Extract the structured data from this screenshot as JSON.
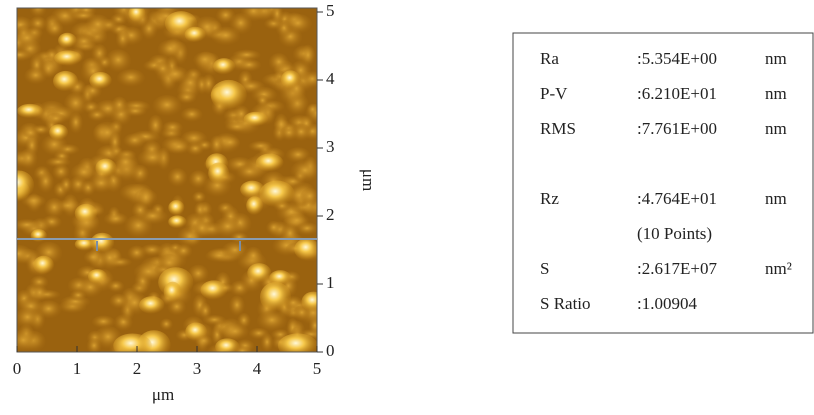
{
  "image_axes": {
    "x_label": "μm",
    "y_label": "μm",
    "xticks": [
      0,
      1,
      2,
      3,
      4,
      5
    ],
    "yticks": [
      0,
      1,
      2,
      3,
      4,
      5
    ]
  },
  "table": {
    "rows": [
      {
        "name": "Ra",
        "value": ":5.354E+00",
        "unit": "nm"
      },
      {
        "name": "P-V",
        "value": ":6.210E+01",
        "unit": "nm"
      },
      {
        "name": "RMS",
        "value": ":7.761E+00",
        "unit": "nm"
      },
      {
        "name": "Rz",
        "value": ":4.764E+01",
        "unit": "nm"
      },
      {
        "value": "(10 Points)"
      },
      {
        "name": "S",
        "value": ":2.617E+07",
        "unit": "nm²"
      },
      {
        "name": "S Ratio",
        "value": ":1.00904"
      }
    ]
  }
}
